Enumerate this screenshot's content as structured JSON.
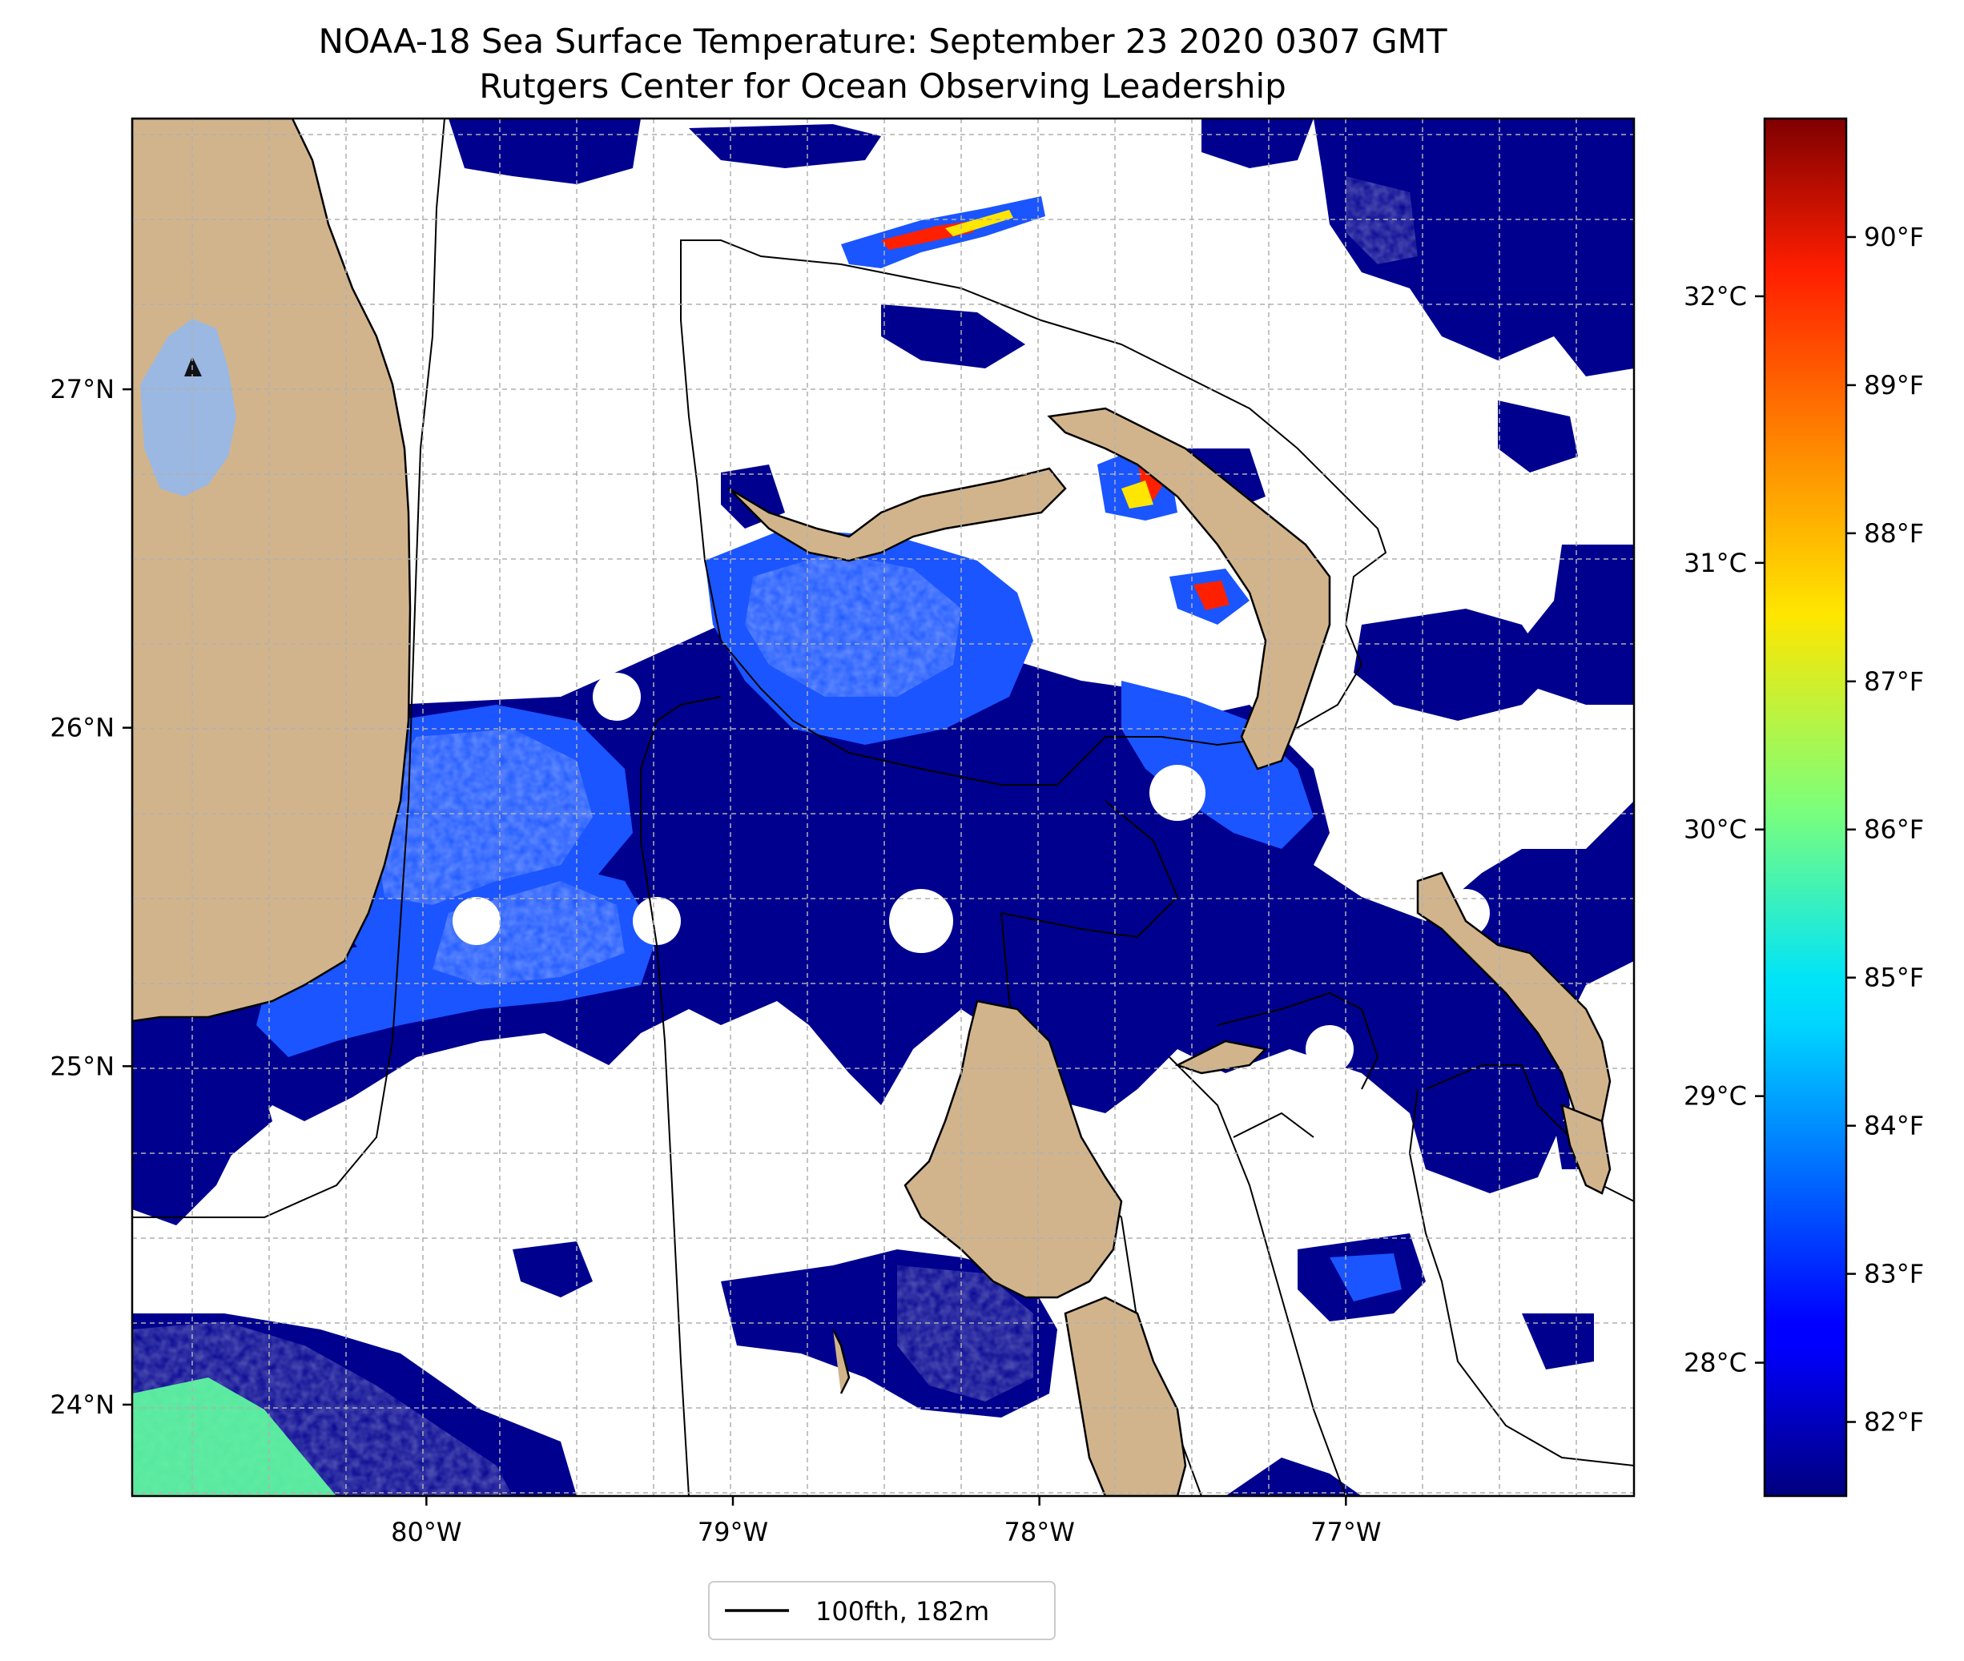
{
  "title_line1": "NOAA-18 Sea Surface Temperature: September 23 2020 0307 GMT",
  "title_line2": "Rutgers Center for Ocean Observing Leadership",
  "map": {
    "lon_range": [
      -80.96,
      -76.06
    ],
    "lat_range": [
      23.73,
      27.8
    ],
    "lon_ticks": [
      {
        "value": -80,
        "label": "80°W"
      },
      {
        "value": -79,
        "label": "79°W"
      },
      {
        "value": -78,
        "label": "78°W"
      },
      {
        "value": -77,
        "label": "77°W"
      }
    ],
    "lat_ticks": [
      {
        "value": 27,
        "label": "27°N"
      },
      {
        "value": 26,
        "label": "26°N"
      },
      {
        "value": 25,
        "label": "25°N"
      },
      {
        "value": 24,
        "label": "24°N"
      }
    ],
    "gridlines": true,
    "colors": {
      "land": "#d2b48c",
      "lake": "#9ab8e2",
      "cold": "#00008f",
      "mid": "#1a55ff",
      "cyan": "#1ec8ff",
      "warm_green": "#60ffa0",
      "hot": "#ff2000"
    }
  },
  "colorbar": {
    "colormap": "jet",
    "range_f": [
      81.5,
      90.8
    ],
    "fahrenheit_ticks": [
      {
        "value": 82,
        "label": "82°F"
      },
      {
        "value": 83,
        "label": "83°F"
      },
      {
        "value": 84,
        "label": "84°F"
      },
      {
        "value": 85,
        "label": "85°F"
      },
      {
        "value": 86,
        "label": "86°F"
      },
      {
        "value": 87,
        "label": "87°F"
      },
      {
        "value": 88,
        "label": "88°F"
      },
      {
        "value": 89,
        "label": "89°F"
      },
      {
        "value": 90,
        "label": "90°F"
      }
    ],
    "celsius_ticks": [
      {
        "value": 28,
        "label": "28°C"
      },
      {
        "value": 29,
        "label": "29°C"
      },
      {
        "value": 30,
        "label": "30°C"
      },
      {
        "value": 31,
        "label": "31°C"
      },
      {
        "value": 32,
        "label": "32°C"
      }
    ]
  },
  "legend": {
    "label": "100fth, 182m"
  }
}
